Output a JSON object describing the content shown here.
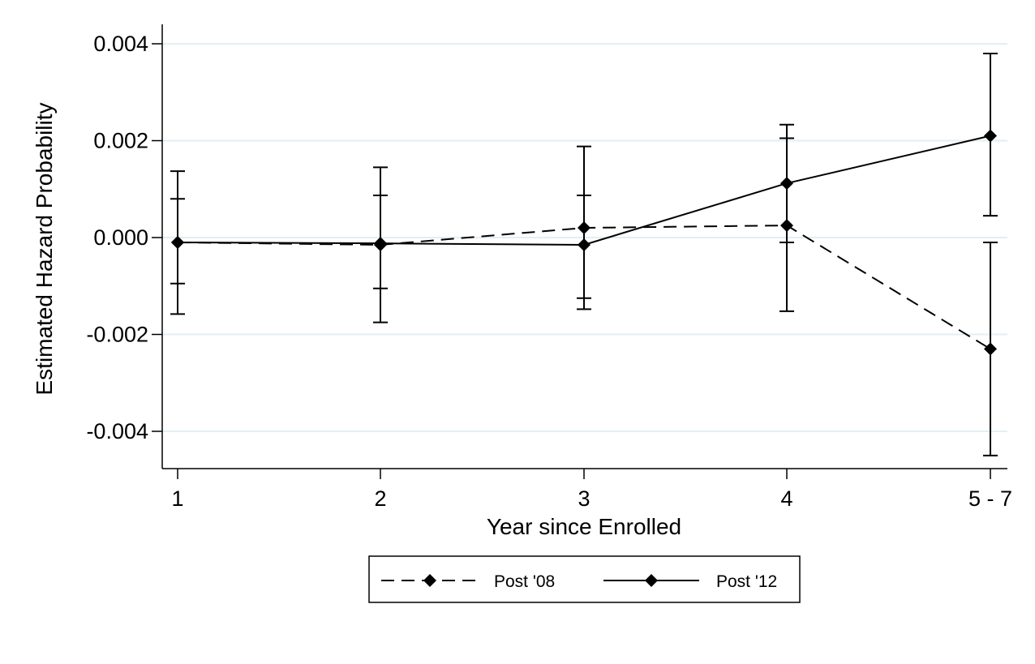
{
  "chart_data": {
    "type": "line",
    "title": "",
    "xlabel": "Year since Enrolled",
    "ylabel": "Estimated Hazard Probability",
    "categories": [
      "1",
      "2",
      "3",
      "4",
      "5 - 7"
    ],
    "yticks": [
      "0.004",
      "0.002",
      "0.000",
      "-0.002",
      "-0.004"
    ],
    "ytick_values": [
      0.004,
      0.002,
      0.0,
      -0.002,
      -0.004
    ],
    "ylim": [
      -0.0048,
      0.0043
    ],
    "grid": true,
    "legend_position": "bottom",
    "series": [
      {
        "name": "Post '08",
        "style": "dashed",
        "marker": "diamond",
        "values": [
          -0.0001,
          -0.00015,
          0.0002,
          0.00025,
          -0.0023
        ],
        "ci_low": [
          -0.00095,
          -0.00105,
          -0.00125,
          -0.00152,
          -0.0045
        ],
        "ci_high": [
          0.0008,
          0.00087,
          0.00087,
          0.00205,
          -0.0001
        ]
      },
      {
        "name": "Post '12",
        "style": "solid",
        "marker": "diamond",
        "values": [
          -0.0001,
          -0.00012,
          -0.00015,
          0.00112,
          0.0021
        ],
        "ci_low": [
          -0.00158,
          -0.00175,
          -0.00148,
          -0.0001,
          0.00045
        ],
        "ci_high": [
          0.00137,
          0.00145,
          0.00188,
          0.00233,
          0.0038
        ]
      }
    ],
    "colors": {
      "line": "#000000",
      "grid": "#e4eef2",
      "axis": "#000000"
    }
  }
}
